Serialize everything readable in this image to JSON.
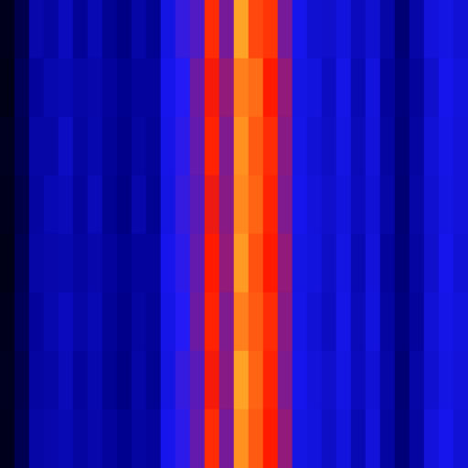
{
  "chart_data": {
    "type": "heatmap",
    "tick_labels": false,
    "zlim": [
      0,
      100
    ],
    "cells": [
      [
        5,
        14,
        32,
        30,
        36,
        28,
        34,
        27,
        24,
        31,
        27,
        44,
        53,
        56,
        77,
        60,
        90,
        80,
        78,
        60,
        46,
        40,
        39,
        43,
        36,
        40,
        31,
        21,
        31,
        42,
        44,
        41
      ],
      [
        4,
        16,
        29,
        33,
        34,
        31,
        32,
        29,
        26,
        29,
        29,
        46,
        51,
        59,
        74,
        63,
        86,
        84,
        75,
        63,
        44,
        43,
        37,
        45,
        34,
        43,
        29,
        23,
        29,
        39,
        46,
        43
      ],
      [
        6,
        15,
        31,
        31,
        37,
        30,
        33,
        28,
        25,
        30,
        28,
        45,
        52,
        58,
        76,
        61,
        88,
        82,
        77,
        62,
        45,
        41,
        38,
        44,
        35,
        42,
        30,
        22,
        30,
        41,
        45,
        42
      ],
      [
        5,
        13,
        30,
        34,
        35,
        29,
        35,
        27,
        24,
        32,
        27,
        44,
        53,
        57,
        73,
        62,
        87,
        83,
        76,
        61,
        46,
        42,
        39,
        43,
        36,
        41,
        31,
        21,
        31,
        40,
        44,
        42
      ],
      [
        4,
        15,
        31,
        32,
        33,
        30,
        32,
        29,
        26,
        29,
        29,
        46,
        52,
        58,
        75,
        63,
        89,
        81,
        75,
        63,
        44,
        43,
        38,
        44,
        34,
        42,
        29,
        22,
        30,
        39,
        46,
        41
      ],
      [
        5,
        16,
        29,
        33,
        36,
        31,
        34,
        28,
        25,
        30,
        28,
        45,
        51,
        59,
        76,
        61,
        86,
        82,
        77,
        62,
        45,
        41,
        37,
        45,
        35,
        43,
        30,
        23,
        29,
        41,
        45,
        43
      ],
      [
        6,
        14,
        30,
        31,
        35,
        29,
        33,
        27,
        24,
        31,
        27,
        44,
        53,
        57,
        74,
        62,
        90,
        83,
        76,
        61,
        46,
        42,
        39,
        44,
        36,
        41,
        31,
        21,
        31,
        40,
        44,
        42
      ],
      [
        5,
        15,
        31,
        32,
        34,
        30,
        32,
        29,
        26,
        30,
        29,
        46,
        52,
        58,
        77,
        60,
        88,
        82,
        75,
        63,
        44,
        43,
        38,
        43,
        34,
        42,
        30,
        22,
        30,
        42,
        46,
        41
      ]
    ]
  }
}
